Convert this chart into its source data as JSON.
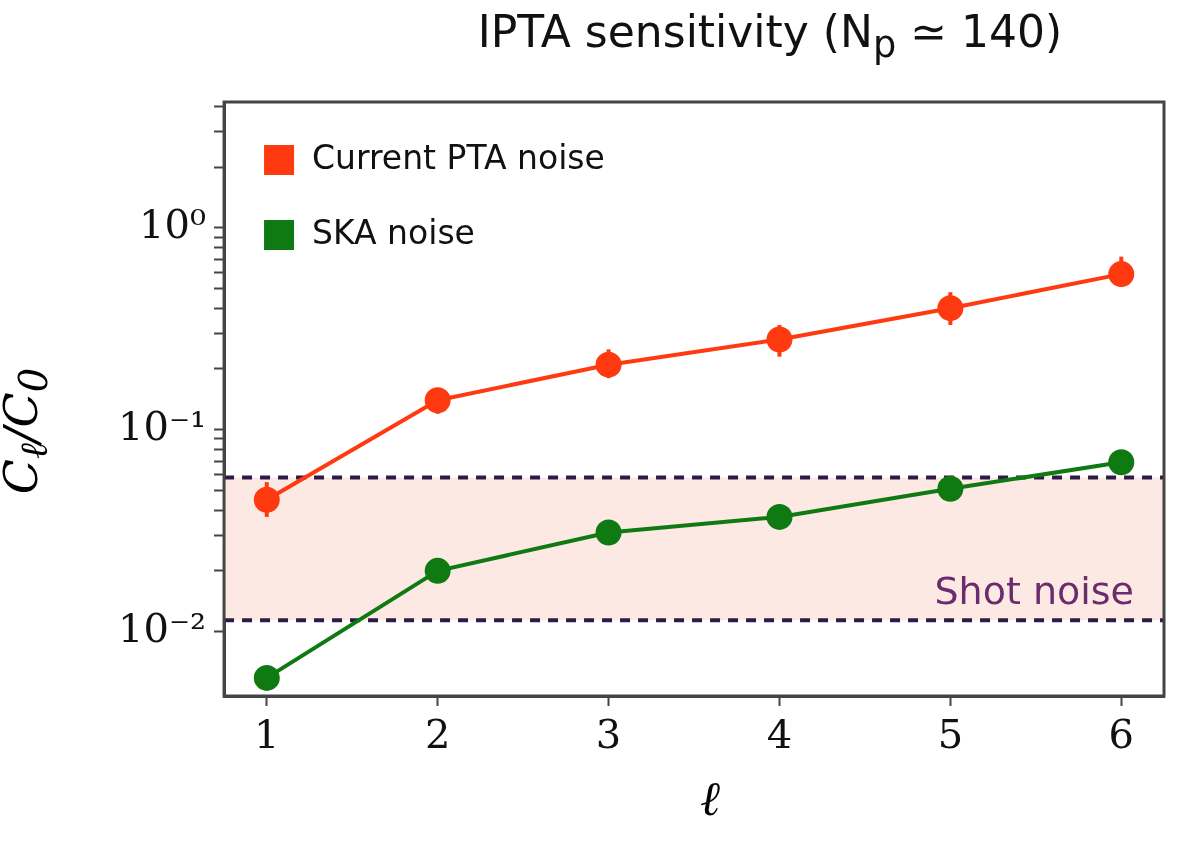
{
  "chart_data": {
    "type": "line",
    "title": "IPTA sensitivity  (N$_{p}$ ≃ 140)",
    "xlabel": "ℓ",
    "ylabel": "C$_{ℓ}$/C$_{0}$",
    "x": [
      1,
      2,
      3,
      4,
      5,
      6
    ],
    "series": [
      {
        "name": "Current PTA noise",
        "color": "#ff3a10",
        "values": [
          0.045,
          0.14,
          0.21,
          0.28,
          0.4,
          0.59
        ],
        "errors": [
          [
            0.037,
            0.055
          ],
          [
            0.12,
            0.16
          ],
          [
            0.18,
            0.25
          ],
          [
            0.23,
            0.33
          ],
          [
            0.33,
            0.48
          ],
          [
            0.51,
            0.72
          ]
        ]
      },
      {
        "name": "SKA noise",
        "color": "#0f7a12",
        "values": [
          0.0059,
          0.02,
          0.031,
          0.037,
          0.051,
          0.069
        ]
      }
    ],
    "log": "y",
    "xlim": [
      0.75,
      6.25
    ],
    "xticks": [
      1,
      2,
      3,
      4,
      5,
      6
    ],
    "ylim": [
      0.0048,
      4.2
    ],
    "yticks": [
      {
        "value": 0.01,
        "label": "10⁻²"
      },
      {
        "value": 0.02,
        "label": null
      },
      {
        "value": 0.03,
        "label": null
      },
      {
        "value": 0.04,
        "label": null
      },
      {
        "value": 0.05,
        "label": null
      },
      {
        "value": 0.06,
        "label": null
      },
      {
        "value": 0.07,
        "label": null
      },
      {
        "value": 0.08,
        "label": null
      },
      {
        "value": 0.09,
        "label": null
      },
      {
        "value": 0.1,
        "label": "10⁻¹"
      },
      {
        "value": 0.2,
        "label": null
      },
      {
        "value": 0.3,
        "label": null
      },
      {
        "value": 0.4,
        "label": null
      },
      {
        "value": 0.5,
        "label": null
      },
      {
        "value": 0.6,
        "label": null
      },
      {
        "value": 0.7,
        "label": null
      },
      {
        "value": 0.8,
        "label": null
      },
      {
        "value": 0.9,
        "label": null
      },
      {
        "value": 1,
        "label": "10⁰"
      },
      {
        "value": 2,
        "label": null
      },
      {
        "value": 3,
        "label": null
      },
      {
        "value": 4,
        "label": null
      }
    ],
    "bands": [
      {
        "axis": "y",
        "from": 0.0114,
        "to": 0.058,
        "label": "Shot noise",
        "color": "#fde9e4"
      }
    ],
    "ref_lines": [
      {
        "axis": "y",
        "value": 0.058,
        "color": "#2e1a47",
        "line_style": "dashed"
      },
      {
        "axis": "y",
        "value": 0.0114,
        "color": "#2e1a47",
        "line_style": "dashed"
      }
    ],
    "legend": "top left",
    "marker": "circle",
    "grid": false
  }
}
